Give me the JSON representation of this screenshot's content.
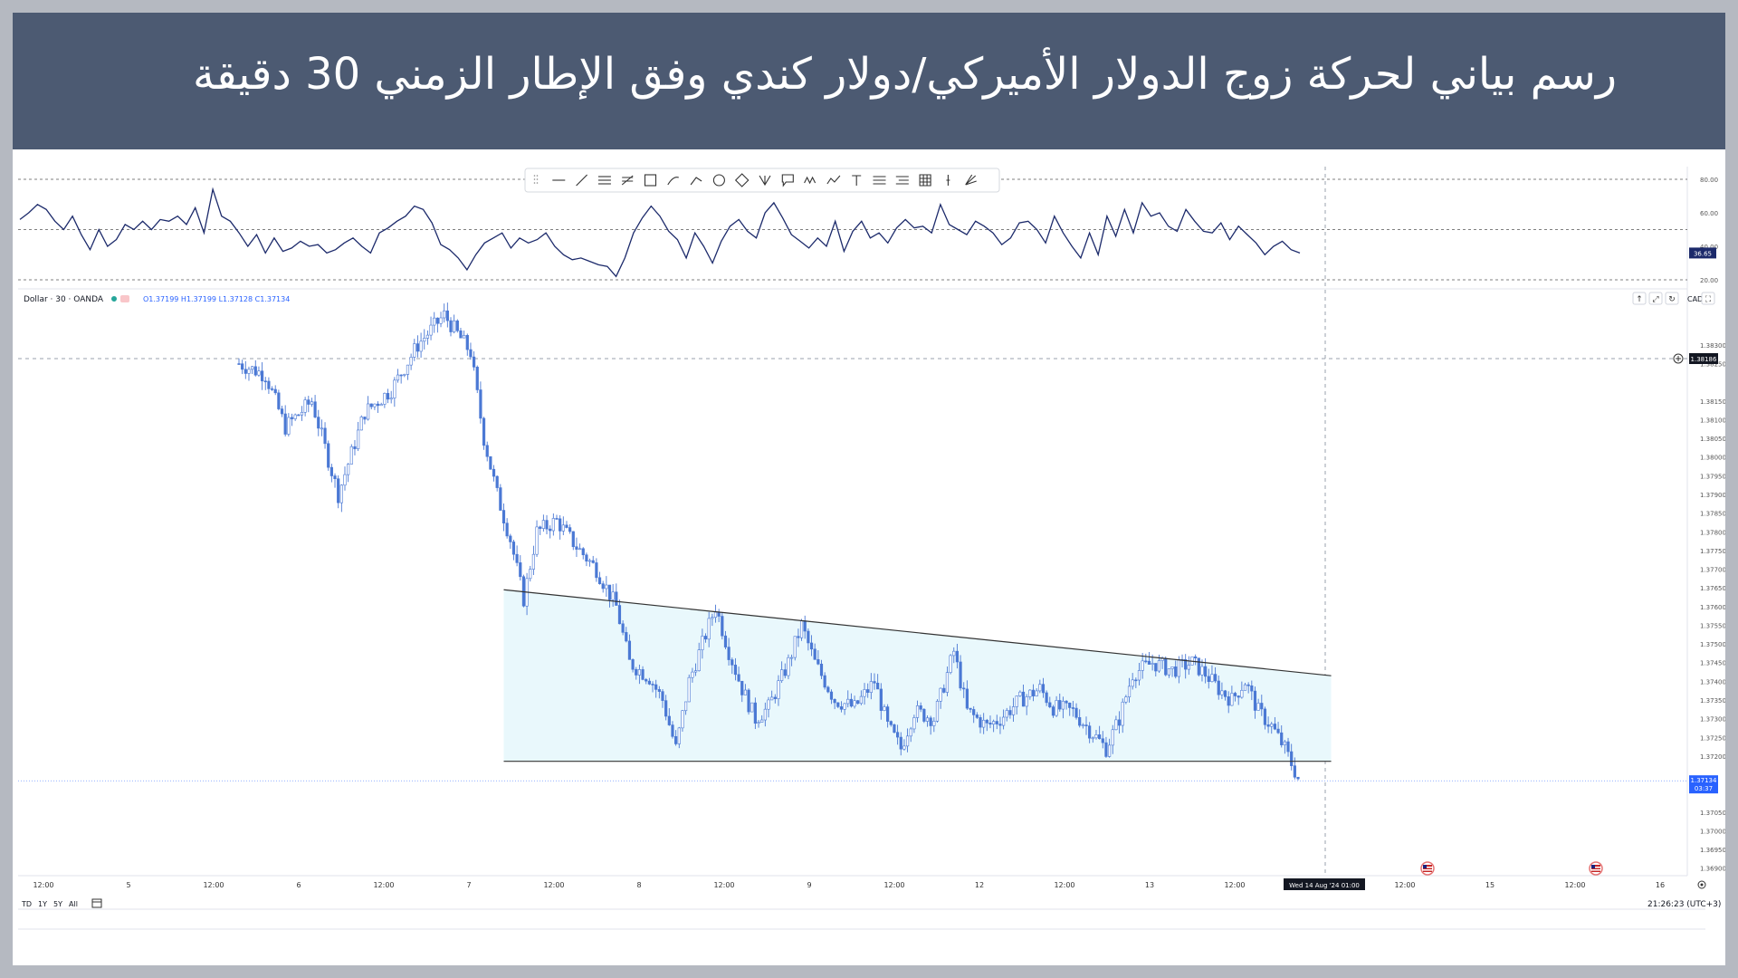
{
  "header": {
    "title": "رسم بياني لحركة زوج الدولار الأميركي/دولار كندي وفق الإطار الزمني 30 دقيقة"
  },
  "colors": {
    "banner": "#4c5a72",
    "candle": "#4a78d4",
    "oscillator": "#1c2a6b",
    "triangle_fill": "#e9f8fc",
    "trend_line": "#333333",
    "background": "#b5b9c1"
  },
  "toolbar": {
    "icons": [
      "drag-handle-icon",
      "horizontal-line-icon",
      "trend-line-icon",
      "parallel-channel-icon",
      "fib-retracement-icon",
      "rectangle-icon",
      "brush-icon",
      "path-icon",
      "circle-icon",
      "rotated-rectangle-icon",
      "pitchfork-icon",
      "callout-icon",
      "wave-icon",
      "polyline-icon",
      "text-icon",
      "long-position-icon",
      "short-position-icon",
      "grid-icon",
      "cursor-line-icon",
      "settings-icon"
    ]
  },
  "legend": {
    "symbol": "Dollar · 30 · OANDA",
    "ohlc": "O1.37199 H1.37199 L1.37128 C1.37134"
  },
  "chart_controls": {
    "currency": "CAD",
    "up_arrow": "↑",
    "expand": "⤢",
    "reset": "↻",
    "fullscreen": "⛶"
  },
  "timeframe_bar": {
    "ranges": [
      "TD",
      "1Y",
      "5Y",
      "All"
    ],
    "clock": "21:26:23 (UTC+3)"
  },
  "chart_data": [
    {
      "type": "line",
      "name": "oscillator",
      "ylim": [
        20,
        80
      ],
      "y_ticks": [
        "80.00",
        "60.00",
        "40.00",
        "20.00"
      ],
      "reference_levels": [
        80,
        50,
        20
      ],
      "current_label": "36.65",
      "values": [
        56,
        60,
        65,
        62,
        55,
        50,
        58,
        47,
        38,
        50,
        40,
        44,
        53,
        50,
        55,
        50,
        56,
        55,
        58,
        53,
        63,
        48,
        74,
        58,
        55,
        48,
        40,
        47,
        36,
        45,
        37,
        39,
        43,
        40,
        41,
        36,
        38,
        42,
        45,
        40,
        36,
        48,
        51,
        55,
        58,
        64,
        62,
        54,
        41,
        38,
        33,
        26,
        35,
        42,
        45,
        48,
        39,
        45,
        42,
        44,
        48,
        40,
        35,
        32,
        33,
        31,
        29,
        28,
        22,
        33,
        48,
        57,
        64,
        58,
        49,
        44,
        33,
        48,
        40,
        30,
        43,
        52,
        56,
        49,
        45,
        60,
        66,
        57,
        47,
        43,
        39,
        45,
        40,
        55,
        37,
        49,
        55,
        45,
        48,
        42,
        51,
        56,
        51,
        52,
        48,
        65,
        53,
        50,
        47,
        55,
        52,
        48,
        41,
        45,
        54,
        55,
        50,
        42,
        58,
        48,
        40,
        33,
        48,
        35,
        58,
        46,
        62,
        48,
        66,
        58,
        60,
        52,
        49,
        62,
        55,
        49,
        48,
        54,
        44,
        52,
        47,
        42,
        35,
        40,
        43,
        38,
        36
      ],
      "x_index_span": [
        0,
        320
      ]
    },
    {
      "type": "candlestick",
      "title": "Dollar · 30 · OANDA",
      "ylim": [
        1.3688,
        1.3845
      ],
      "y_ticks": [
        "1.38300",
        "1.38250",
        "1.38150",
        "1.38100",
        "1.38050",
        "1.38000",
        "1.37950",
        "1.37900",
        "1.37850",
        "1.37800",
        "1.37750",
        "1.37700",
        "1.37650",
        "1.37600",
        "1.37550",
        "1.37500",
        "1.37450",
        "1.37400",
        "1.37350",
        "1.37300",
        "1.37250",
        "1.37200",
        "1.37050",
        "1.37000",
        "1.36950",
        "1.36900"
      ],
      "price_labels": [
        {
          "name": "crosshair-price",
          "value": "1.38186"
        },
        {
          "name": "current-price",
          "value": "1.37134",
          "countdown": "03:37"
        }
      ],
      "x_ticks": [
        "12:00",
        "5",
        "12:00",
        "6",
        "12:00",
        "7",
        "12:00",
        "8",
        "12:00",
        "9",
        "12:00",
        "12",
        "12:00",
        "13",
        "12:00",
        "Wed 14 Aug '24   01:00",
        "12:00",
        "15",
        "12:00",
        "16"
      ],
      "close_path": [
        [
          0,
          1.3825
        ],
        [
          8,
          1.3822
        ],
        [
          14,
          1.3808
        ],
        [
          22,
          1.3815
        ],
        [
          30,
          1.379
        ],
        [
          38,
          1.3812
        ],
        [
          46,
          1.3818
        ],
        [
          54,
          1.383
        ],
        [
          62,
          1.3838
        ],
        [
          70,
          1.3828
        ],
        [
          74,
          1.3805
        ],
        [
          78,
          1.379
        ],
        [
          82,
          1.3778
        ],
        [
          86,
          1.3762
        ],
        [
          90,
          1.378
        ],
        [
          96,
          1.3783
        ],
        [
          102,
          1.3776
        ],
        [
          108,
          1.377
        ],
        [
          114,
          1.376
        ],
        [
          118,
          1.3745
        ],
        [
          124,
          1.3741
        ],
        [
          128,
          1.3735
        ],
        [
          132,
          1.3722
        ],
        [
          136,
          1.374
        ],
        [
          140,
          1.375
        ],
        [
          144,
          1.376
        ],
        [
          148,
          1.3748
        ],
        [
          152,
          1.3738
        ],
        [
          156,
          1.373
        ],
        [
          160,
          1.3733
        ],
        [
          166,
          1.3745
        ],
        [
          170,
          1.3755
        ],
        [
          174,
          1.3745
        ],
        [
          180,
          1.3735
        ],
        [
          186,
          1.3733
        ],
        [
          192,
          1.374
        ],
        [
          196,
          1.3728
        ],
        [
          200,
          1.3722
        ],
        [
          204,
          1.3732
        ],
        [
          210,
          1.373
        ],
        [
          216,
          1.3748
        ],
        [
          220,
          1.3732
        ],
        [
          226,
          1.3728
        ],
        [
          230,
          1.373
        ],
        [
          236,
          1.3735
        ],
        [
          242,
          1.3738
        ],
        [
          246,
          1.3733
        ],
        [
          252,
          1.3732
        ],
        [
          256,
          1.3728
        ],
        [
          262,
          1.3722
        ],
        [
          266,
          1.373
        ],
        [
          270,
          1.3742
        ],
        [
          276,
          1.3745
        ],
        [
          282,
          1.3743
        ],
        [
          288,
          1.3745
        ],
        [
          292,
          1.3742
        ],
        [
          296,
          1.3738
        ],
        [
          300,
          1.3735
        ],
        [
          304,
          1.374
        ],
        [
          308,
          1.3732
        ],
        [
          312,
          1.3728
        ],
        [
          316,
          1.3722
        ],
        [
          320,
          1.3714
        ]
      ],
      "candle_x_start": 0,
      "candle_x_end": 320,
      "pattern": {
        "type": "descending-triangle",
        "upper_line": {
          "from": [
            80,
            1.37645
          ],
          "to": [
            330,
            1.37415
          ]
        },
        "lower_line": {
          "from": [
            80,
            1.37186
          ],
          "to": [
            330,
            1.37186
          ]
        }
      }
    }
  ]
}
